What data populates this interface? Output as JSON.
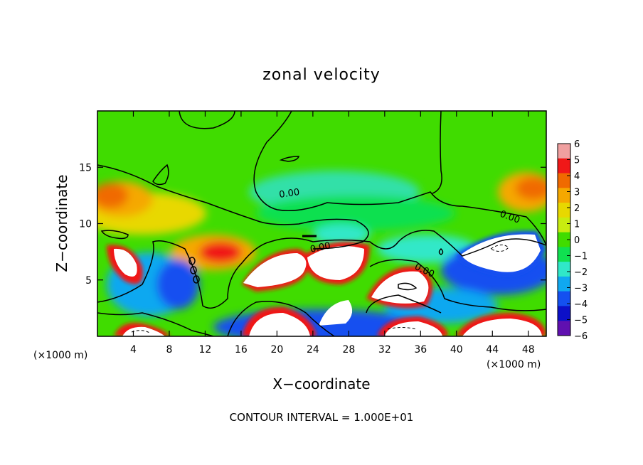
{
  "chart_data": {
    "type": "heatmap",
    "title": "zonal velocity",
    "xlabel": "X−coordinate",
    "ylabel": "Z−coordinate",
    "x_unit_left": "(×1000 m)",
    "x_unit_right": "(×1000 m)",
    "footer": "CONTOUR INTERVAL = 1.000E+01",
    "xlim": [
      0,
      50
    ],
    "ylim": [
      0,
      20
    ],
    "x_ticks": [
      4,
      8,
      12,
      16,
      20,
      24,
      28,
      32,
      36,
      40,
      44,
      48
    ],
    "y_ticks": [
      5,
      10,
      15
    ],
    "colorbar": {
      "ticks": [
        6,
        5,
        4,
        3,
        2,
        1,
        0,
        -1,
        -2,
        -3,
        -4,
        -5,
        -6
      ],
      "colors": [
        "#f0a0a0",
        "#f01818",
        "#f06a00",
        "#f5a800",
        "#e8d800",
        "#c8ec10",
        "#40dc00",
        "#10e050",
        "#30e8c8",
        "#10a8f0",
        "#1450f0",
        "#0c10c8",
        "#6010b0"
      ]
    },
    "contour_labels": [
      "0.00",
      "0.00",
      "0.00",
      "0.00"
    ],
    "white_region_color": "#ffffff",
    "contour_color": "#000000",
    "grid": false
  }
}
